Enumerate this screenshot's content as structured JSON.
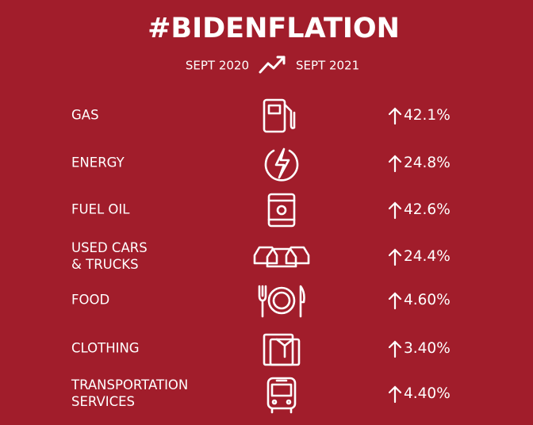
{
  "title": "#BIDENFLATION",
  "period": {
    "start": "SEPT 2020",
    "end": "SEPT 2021"
  },
  "rows": [
    {
      "label": [
        "GAS"
      ],
      "change": "42.1%"
    },
    {
      "label": [
        "ENERGY"
      ],
      "change": "24.8%"
    },
    {
      "label": [
        "FUEL OIL"
      ],
      "change": "42.6%"
    },
    {
      "label": [
        "USED CARS",
        "& TRUCKS"
      ],
      "change": "24.4%"
    },
    {
      "label": [
        "FOOD"
      ],
      "change": "4.60%"
    },
    {
      "label": [
        "CLOTHING"
      ],
      "change": "3.40%"
    },
    {
      "label": [
        "TRANSPORTATION",
        "SERVICES"
      ],
      "change": "4.40%"
    }
  ]
}
